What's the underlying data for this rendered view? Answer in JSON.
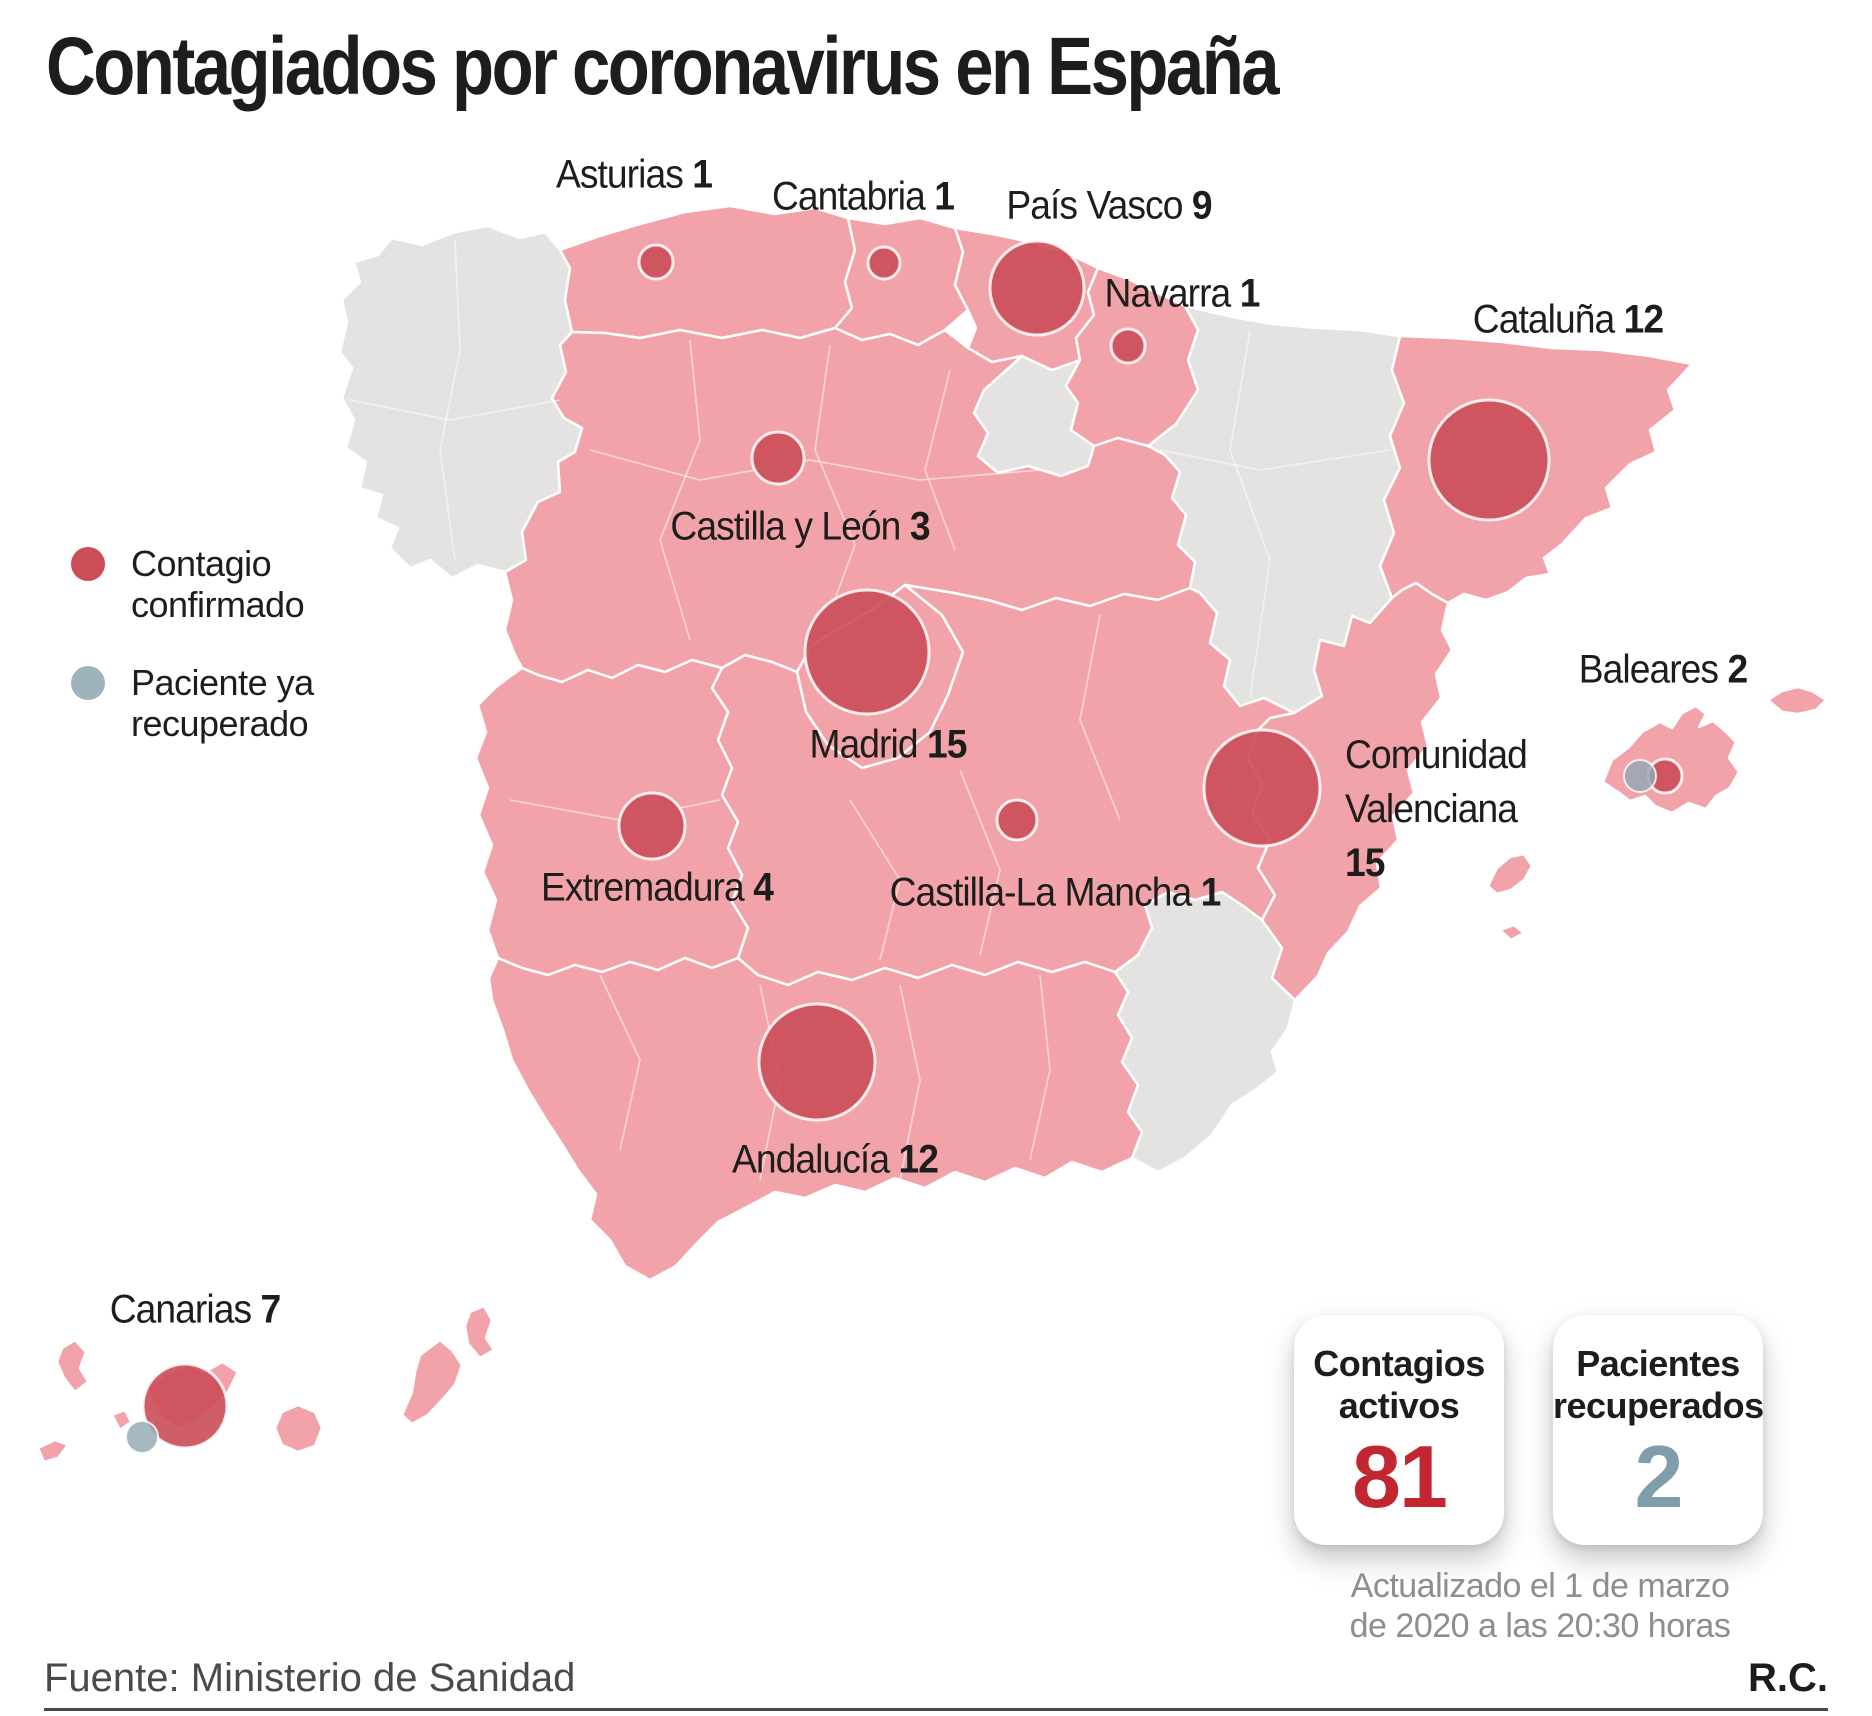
{
  "title": "Contagiados por coronavirus en España",
  "legend": {
    "confirmed": "Contagio confirmado",
    "recovered": "Paciente ya recuperado"
  },
  "stats": {
    "active_label": "Contagios activos",
    "active_value": "81",
    "recovered_label": "Pacientes recuperados",
    "recovered_value": "2",
    "updated_line1": "Actualizado el 1 de marzo",
    "updated_line2": "de 2020 a las 20:30 horas"
  },
  "footer": {
    "source": "Fuente: Ministerio de Sanidad",
    "credit": "R.C."
  },
  "colors": {
    "confirmed_circle": "#cb4d58",
    "recovered_circle": "#92a9b4",
    "affected_region": "#f2a3aa",
    "unaffected_region": "#e4e3e1",
    "region_border": "#ffffff",
    "active_number": "#c22731",
    "recovered_number": "#7f9dab",
    "title_text": "#1d1d1b",
    "caption_gray": "#8e8e8e"
  },
  "chart_data": {
    "type": "map",
    "title": "Contagiados por coronavirus en España",
    "regions": [
      {
        "name": "Asturias",
        "cases": 1,
        "recovered": 0
      },
      {
        "name": "Cantabria",
        "cases": 1,
        "recovered": 0
      },
      {
        "name": "País Vasco",
        "cases": 9,
        "recovered": 0
      },
      {
        "name": "Navarra",
        "cases": 1,
        "recovered": 0
      },
      {
        "name": "Cataluña",
        "cases": 12,
        "recovered": 0
      },
      {
        "name": "Castilla y León",
        "cases": 3,
        "recovered": 0
      },
      {
        "name": "Madrid",
        "cases": 15,
        "recovered": 0
      },
      {
        "name": "Extremadura",
        "cases": 4,
        "recovered": 0
      },
      {
        "name": "Castilla-La Mancha",
        "cases": 1,
        "recovered": 0
      },
      {
        "name": "Comunidad Valenciana",
        "cases": 15,
        "recovered": 0
      },
      {
        "name": "Andalucía",
        "cases": 12,
        "recovered": 0
      },
      {
        "name": "Baleares",
        "cases": 2,
        "recovered": 1
      },
      {
        "name": "Canarias",
        "cases": 7,
        "recovered": 1
      }
    ],
    "regions_without_cases": [
      "Galicia",
      "La Rioja",
      "Aragón",
      "Murcia"
    ],
    "totals": {
      "contagios_activos": 81,
      "pacientes_recuperados": 2
    },
    "legend": [
      "Contagio confirmado",
      "Paciente ya recuperado"
    ],
    "source": "Ministerio de Sanidad"
  }
}
